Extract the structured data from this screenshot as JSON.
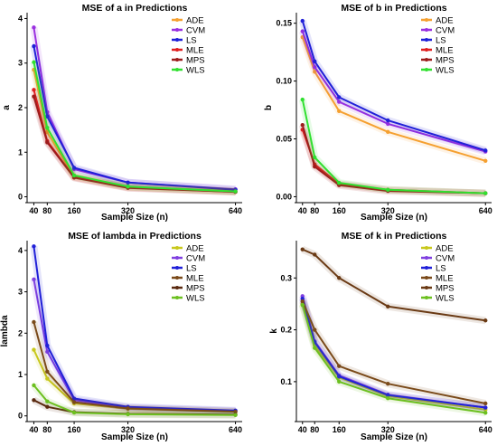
{
  "chart_data": [
    {
      "type": "line",
      "title": "MSE of a in Predictions",
      "xlabel": "Sample Size (n)",
      "ylabel": "a",
      "x": [
        40,
        80,
        160,
        320,
        640
      ],
      "xticks": [
        40,
        80,
        160,
        320,
        640
      ],
      "xlim": [
        20,
        660
      ],
      "ylim": [
        -0.05,
        4.05
      ],
      "yticks": [
        0,
        1,
        2,
        3,
        4
      ],
      "grid": false,
      "legend_position": "top-right",
      "series": [
        {
          "name": "ADE",
          "color": "#f5a030",
          "values": [
            2.85,
            1.45,
            0.45,
            0.22,
            0.13
          ]
        },
        {
          "name": "CVM",
          "color": "#9a30e0",
          "values": [
            3.8,
            1.9,
            0.62,
            0.32,
            0.17
          ]
        },
        {
          "name": "LS",
          "color": "#2020d8",
          "values": [
            3.38,
            1.8,
            0.65,
            0.32,
            0.16
          ]
        },
        {
          "name": "MLE",
          "color": "#e02020",
          "values": [
            2.4,
            1.25,
            0.44,
            0.21,
            0.11
          ]
        },
        {
          "name": "MPS",
          "color": "#9c1c1c",
          "values": [
            2.25,
            1.22,
            0.43,
            0.2,
            0.11
          ]
        },
        {
          "name": "WLS",
          "color": "#30e030",
          "values": [
            3.02,
            1.55,
            0.48,
            0.23,
            0.12
          ]
        }
      ]
    },
    {
      "type": "line",
      "title": "MSE of b in Predictions",
      "xlabel": "Sample Size (n)",
      "ylabel": "b",
      "x": [
        40,
        80,
        160,
        320,
        640
      ],
      "xticks": [
        40,
        80,
        160,
        320,
        640
      ],
      "xlim": [
        20,
        660
      ],
      "ylim": [
        -0.002,
        0.156
      ],
      "yticks": [
        0.0,
        0.05,
        0.1,
        0.15
      ],
      "ytick_labels": [
        "0.00",
        "0.05",
        "0.10",
        "0.15"
      ],
      "grid": false,
      "legend_position": "top-right",
      "series": [
        {
          "name": "ADE",
          "color": "#f5a030",
          "values": [
            0.138,
            0.108,
            0.074,
            0.056,
            0.031
          ]
        },
        {
          "name": "CVM",
          "color": "#9a30e0",
          "values": [
            0.143,
            0.112,
            0.082,
            0.063,
            0.039
          ]
        },
        {
          "name": "LS",
          "color": "#2020d8",
          "values": [
            0.152,
            0.117,
            0.086,
            0.066,
            0.04
          ]
        },
        {
          "name": "MLE",
          "color": "#e02020",
          "values": [
            0.058,
            0.028,
            0.011,
            0.006,
            0.003
          ]
        },
        {
          "name": "MPS",
          "color": "#9c1c1c",
          "values": [
            0.062,
            0.026,
            0.01,
            0.005,
            0.003
          ]
        },
        {
          "name": "WLS",
          "color": "#30e030",
          "values": [
            0.084,
            0.034,
            0.012,
            0.006,
            0.003
          ]
        }
      ]
    },
    {
      "type": "line",
      "title": "MSE of lambda in Predictions",
      "xlabel": "Sample Size (n)",
      "ylabel": "lambda",
      "x": [
        40,
        80,
        160,
        320,
        640
      ],
      "xticks": [
        40,
        80,
        160,
        320,
        640
      ],
      "xlim": [
        20,
        660
      ],
      "ylim": [
        -0.05,
        4.15
      ],
      "yticks": [
        0,
        1,
        2,
        3,
        4
      ],
      "grid": false,
      "legend_position": "top-right",
      "series": [
        {
          "name": "ADE",
          "color": "#c8c81c",
          "values": [
            1.6,
            0.9,
            0.3,
            0.17,
            0.1
          ]
        },
        {
          "name": "CVM",
          "color": "#8040e0",
          "values": [
            3.3,
            1.55,
            0.38,
            0.2,
            0.12
          ]
        },
        {
          "name": "LS",
          "color": "#2020d8",
          "values": [
            4.1,
            1.7,
            0.42,
            0.22,
            0.13
          ]
        },
        {
          "name": "MLE",
          "color": "#7a4a1a",
          "values": [
            2.27,
            1.07,
            0.33,
            0.18,
            0.1
          ]
        },
        {
          "name": "MPS",
          "color": "#5a2a10",
          "values": [
            0.38,
            0.22,
            0.09,
            0.05,
            0.03
          ]
        },
        {
          "name": "WLS",
          "color": "#6cc020",
          "values": [
            0.74,
            0.35,
            0.08,
            0.04,
            0.02
          ]
        }
      ]
    },
    {
      "type": "line",
      "title": "MSE of k in Predictions",
      "xlabel": "Sample Size (n)",
      "ylabel": "k",
      "x": [
        40,
        80,
        160,
        320,
        640
      ],
      "xticks": [
        40,
        80,
        160,
        320,
        640
      ],
      "xlim": [
        20,
        660
      ],
      "ylim": [
        0.03,
        0.365
      ],
      "yticks": [
        0.1,
        0.2,
        0.3
      ],
      "ytick_labels": [
        "0.1",
        "0.2",
        "0.3"
      ],
      "grid": false,
      "legend_position": "top-right",
      "series": [
        {
          "name": "ADE",
          "color": "#c8c81c",
          "values": [
            0.25,
            0.17,
            0.108,
            0.072,
            0.046
          ]
        },
        {
          "name": "CVM",
          "color": "#8040e0",
          "values": [
            0.265,
            0.178,
            0.112,
            0.075,
            0.05
          ]
        },
        {
          "name": "LS",
          "color": "#2020d8",
          "values": [
            0.26,
            0.176,
            0.11,
            0.074,
            0.05
          ]
        },
        {
          "name": "MLE",
          "color": "#7a4a1a",
          "values": [
            0.255,
            0.2,
            0.13,
            0.096,
            0.058
          ]
        },
        {
          "name": "MPS",
          "color": "#6a3a14",
          "values": [
            0.355,
            0.345,
            0.3,
            0.245,
            0.218
          ]
        },
        {
          "name": "WLS",
          "color": "#6cc020",
          "values": [
            0.248,
            0.165,
            0.1,
            0.068,
            0.04
          ]
        }
      ]
    }
  ]
}
